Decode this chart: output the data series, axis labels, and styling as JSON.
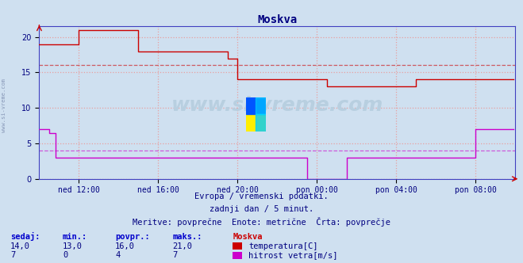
{
  "title": "Moskva",
  "title_color": "#000080",
  "bg_color": "#cfe0f0",
  "plot_bg_color": "#cfe0f0",
  "grid_color": "#e8a0a0",
  "xlabel": "",
  "ylabel": "",
  "ylim": [
    0,
    21
  ],
  "yticks": [
    0,
    5,
    10,
    15,
    20
  ],
  "xtick_labels": [
    "ned 12:00",
    "ned 16:00",
    "ned 20:00",
    "pon 00:00",
    "pon 04:00",
    "pon 08:00"
  ],
  "subtitle1": "Evropa / vremenski podatki.",
  "subtitle2": "zadnji dan / 5 minut.",
  "subtitle3": "Meritve: povprečne  Enote: metrične  Črta: povprečje",
  "text_color": "#000080",
  "watermark": "www.si-vreme.com",
  "legend_title": "Moskva",
  "legend_rows": [
    {
      "sedaj": "14,0",
      "min": "13,0",
      "povpr": "16,0",
      "maks": "21,0",
      "color": "#cc0000",
      "label": "temperatura[C]"
    },
    {
      "sedaj": "7",
      "min": "0",
      "povpr": "4",
      "maks": "7",
      "color": "#cc00cc",
      "label": "hitrost vetra[m/s]"
    }
  ],
  "avg_temp": 16,
  "avg_wind": 4,
  "temp_color": "#cc0000",
  "wind_color": "#cc00cc",
  "axis_color": "#4040c0",
  "tick_color": "#000080",
  "watermark_color": "#b8cfe0",
  "side_text_color": "#8898b8",
  "n_points": 288
}
